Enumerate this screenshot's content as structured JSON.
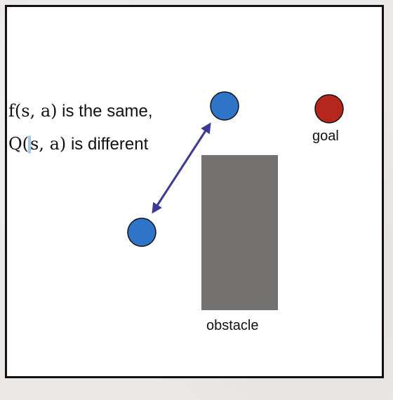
{
  "caption": {
    "line1_math": "f(s, a)",
    "line1_text": " is the same,",
    "line2_math_a": "Q(",
    "line2_math_b": "s, a)",
    "line2_text": " is different"
  },
  "labels": {
    "goal": "goal",
    "obstacle": "obstacle"
  },
  "colors": {
    "agent": "#2e74c9",
    "goal": "#b5271d",
    "obstacle": "#747271",
    "arrow": "#3d3a94",
    "stroke": "#111111"
  },
  "icons": {
    "arrow": "double-headed-arrow"
  }
}
